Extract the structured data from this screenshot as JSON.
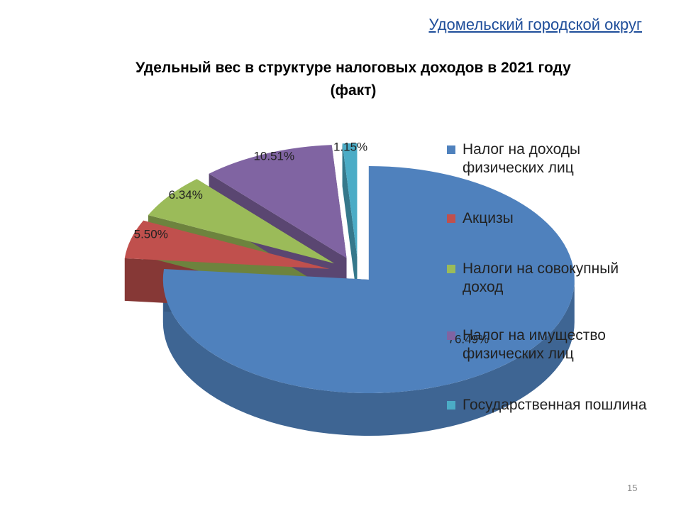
{
  "header": {
    "title": "Удомельский городской округ"
  },
  "page_number": "15",
  "chart_data": {
    "type": "pie",
    "title": "Удельный вес в структуре налоговых доходов в 2021 году (факт)",
    "categories": [
      "Налог на доходы физических лиц",
      "Акцизы",
      "Налоги на совокупный доход",
      "Налог на имущество физических лиц",
      "Государственная пошлина"
    ],
    "values": [
      76.49,
      5.5,
      6.34,
      10.51,
      1.15
    ],
    "value_labels": [
      "76.49%",
      "5.50%",
      "6.34%",
      "10.51%",
      "1.15%"
    ],
    "colors": [
      "#4f81bd",
      "#c0504d",
      "#9bbb59",
      "#8064a2",
      "#4bacc6"
    ],
    "legend": "right"
  }
}
